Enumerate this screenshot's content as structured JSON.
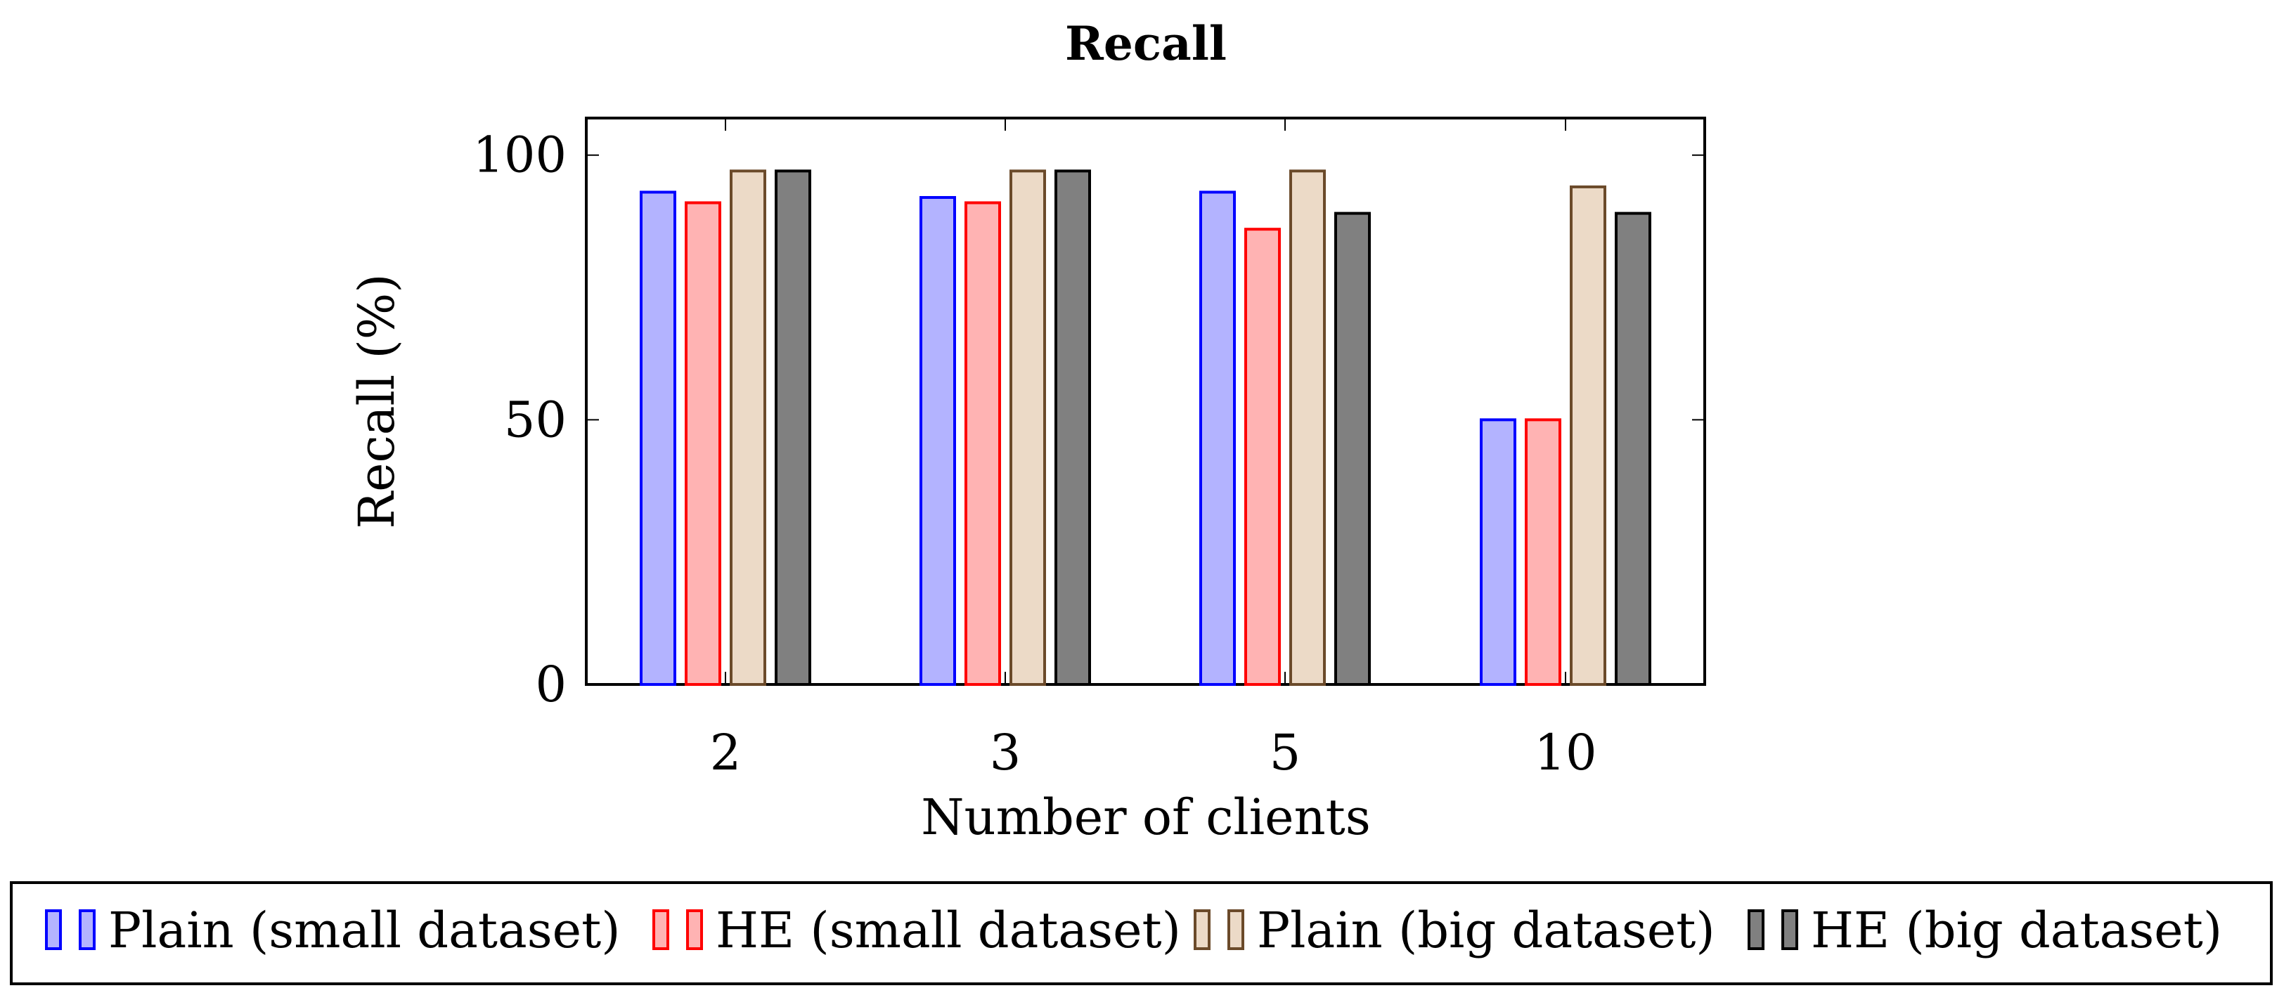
{
  "chart_data": {
    "type": "bar",
    "title": "Recall",
    "xlabel": "Number of clients",
    "ylabel": "Recall (%)",
    "categories": [
      "2",
      "3",
      "5",
      "10"
    ],
    "yticks": [
      0,
      50,
      100
    ],
    "ylim": [
      0,
      107
    ],
    "legend_position": "bottom",
    "series": [
      {
        "name": "Plain (small dataset)",
        "values": [
          93,
          92,
          93,
          50
        ],
        "fill": "#b3b3ff",
        "stroke": "#0000ff"
      },
      {
        "name": "HE (small dataset)",
        "values": [
          91,
          91,
          86,
          50
        ],
        "fill": "#ffb3b3",
        "stroke": "#ff0000"
      },
      {
        "name": "Plain (big dataset)",
        "values": [
          97,
          97,
          97,
          94
        ],
        "fill": "#ecdac7",
        "stroke": "#6b4a2a"
      },
      {
        "name": "HE (big dataset)",
        "values": [
          97,
          97,
          89,
          89
        ],
        "fill": "#808080",
        "stroke": "#000000"
      }
    ]
  }
}
